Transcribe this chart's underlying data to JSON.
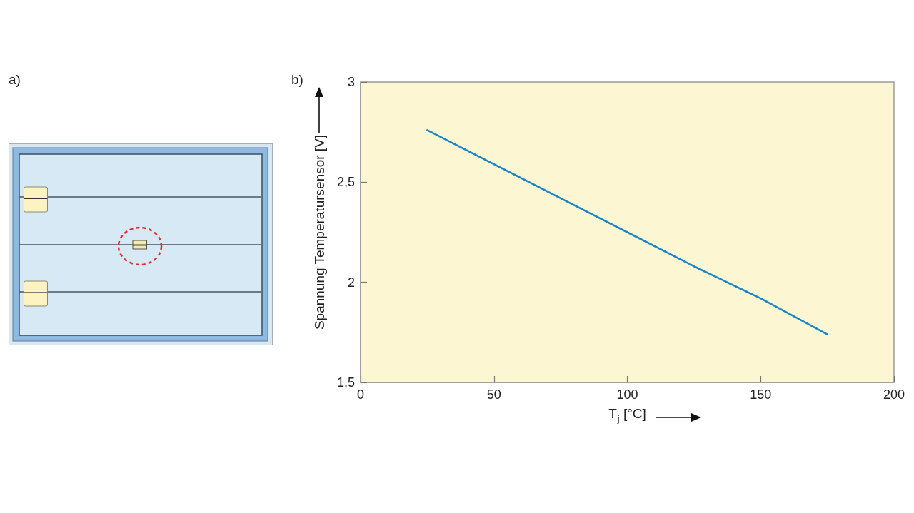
{
  "chart_data": {
    "type": "line",
    "xlabel": "T$_{j}$ [°C]",
    "ylabel": "Spannung Temperatursensor [V]",
    "annotations": [
      "a)",
      "b)"
    ],
    "x": [
      25,
      50,
      75,
      100,
      125,
      150,
      175
    ],
    "series": [
      {
        "color": "#1a86c8",
        "values": [
          2.76,
          2.59,
          2.42,
          2.25,
          2.08,
          1.92,
          1.74
        ]
      }
    ],
    "xlim": [
      0,
      200
    ],
    "xticks": [
      0,
      50,
      100,
      150,
      200
    ],
    "ylim": [
      1.5,
      3
    ],
    "yticks": [
      {
        "value": 1.5,
        "label": "1,5"
      },
      2,
      {
        "value": 2.5,
        "label": "2,5"
      },
      3
    ],
    "grid": false,
    "marker": "none",
    "line_style": "solid"
  }
}
